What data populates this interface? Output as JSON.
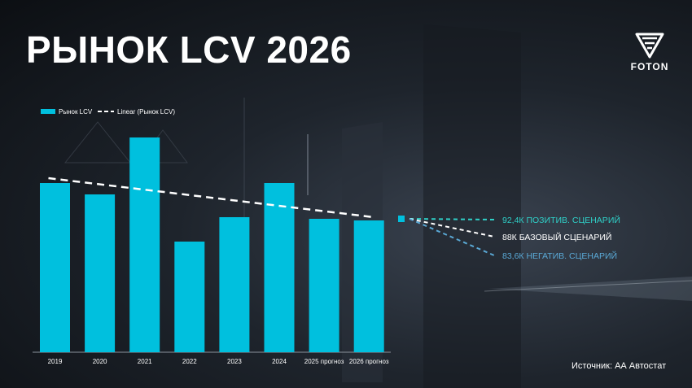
{
  "slide": {
    "title": "РЫНОК LCV 2026",
    "source": "Источник: АА Автостат",
    "logo_text": "FOTON"
  },
  "chart_data": {
    "type": "bar",
    "categories": [
      "2019",
      "2020",
      "2021",
      "2022",
      "2023",
      "2024",
      "2025 прогноз",
      "2026 прогноз"
    ],
    "series": [
      {
        "name": "Рынок LCV",
        "values": [
          104,
          97,
          132,
          68,
          83,
          104,
          82,
          81
        ]
      }
    ],
    "trendline": {
      "name": "Linear (Рынок LCV)",
      "type": "linear",
      "start": 107,
      "end": 83
    },
    "ylim": [
      0,
      150
    ],
    "legend_position": "top-left",
    "scenarios": [
      {
        "label": "92,4К ПОЗИТИВ. СЦЕНАРИЙ",
        "color": "#2fd0c8"
      },
      {
        "label": "88К БАЗОВЫЙ СЦЕНАРИЙ",
        "color": "#ffffff"
      },
      {
        "label": "83,6К НЕГАТИВ. СЦЕНАРИЙ",
        "color": "#5aa9d6"
      }
    ],
    "colors": {
      "bar": "#00c0de",
      "trend": "#ffffff",
      "marker": "#00c0de"
    }
  }
}
